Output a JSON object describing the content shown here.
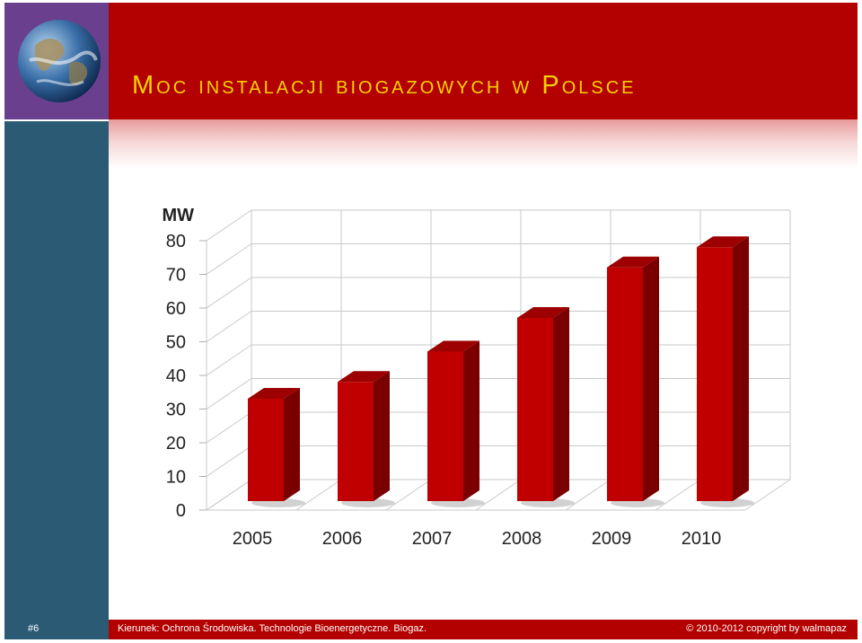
{
  "slide": {
    "title": "Moc instalacji biogazowych w Polsce",
    "page_number": "#6",
    "footer_text": "Kierunek: Ochrona Środowiska. Technologie Bioenergetyczne. Biogaz.",
    "copyright": "© 2010-2012 copyright by walmapaz"
  },
  "colors": {
    "title_bar": "#b30000",
    "title_text": "#f5d200",
    "side_bar": "#2b5a75",
    "logo_box": "#6a3f8e",
    "bar_front": "#c00000",
    "bar_side": "#7a0000",
    "bar_top": "#9c0000"
  },
  "icons": {
    "logo": "globe-icon"
  },
  "chart_data": {
    "type": "bar",
    "ylabel": "MW",
    "categories": [
      "2005",
      "2006",
      "2007",
      "2008",
      "2009",
      "2010"
    ],
    "values": [
      32,
      37,
      46,
      56,
      71,
      77
    ],
    "ylim": [
      0,
      80
    ],
    "yticks": [
      "0",
      "10",
      "20",
      "30",
      "40",
      "50",
      "60",
      "70",
      "80"
    ],
    "grid": true,
    "legend": "none"
  }
}
